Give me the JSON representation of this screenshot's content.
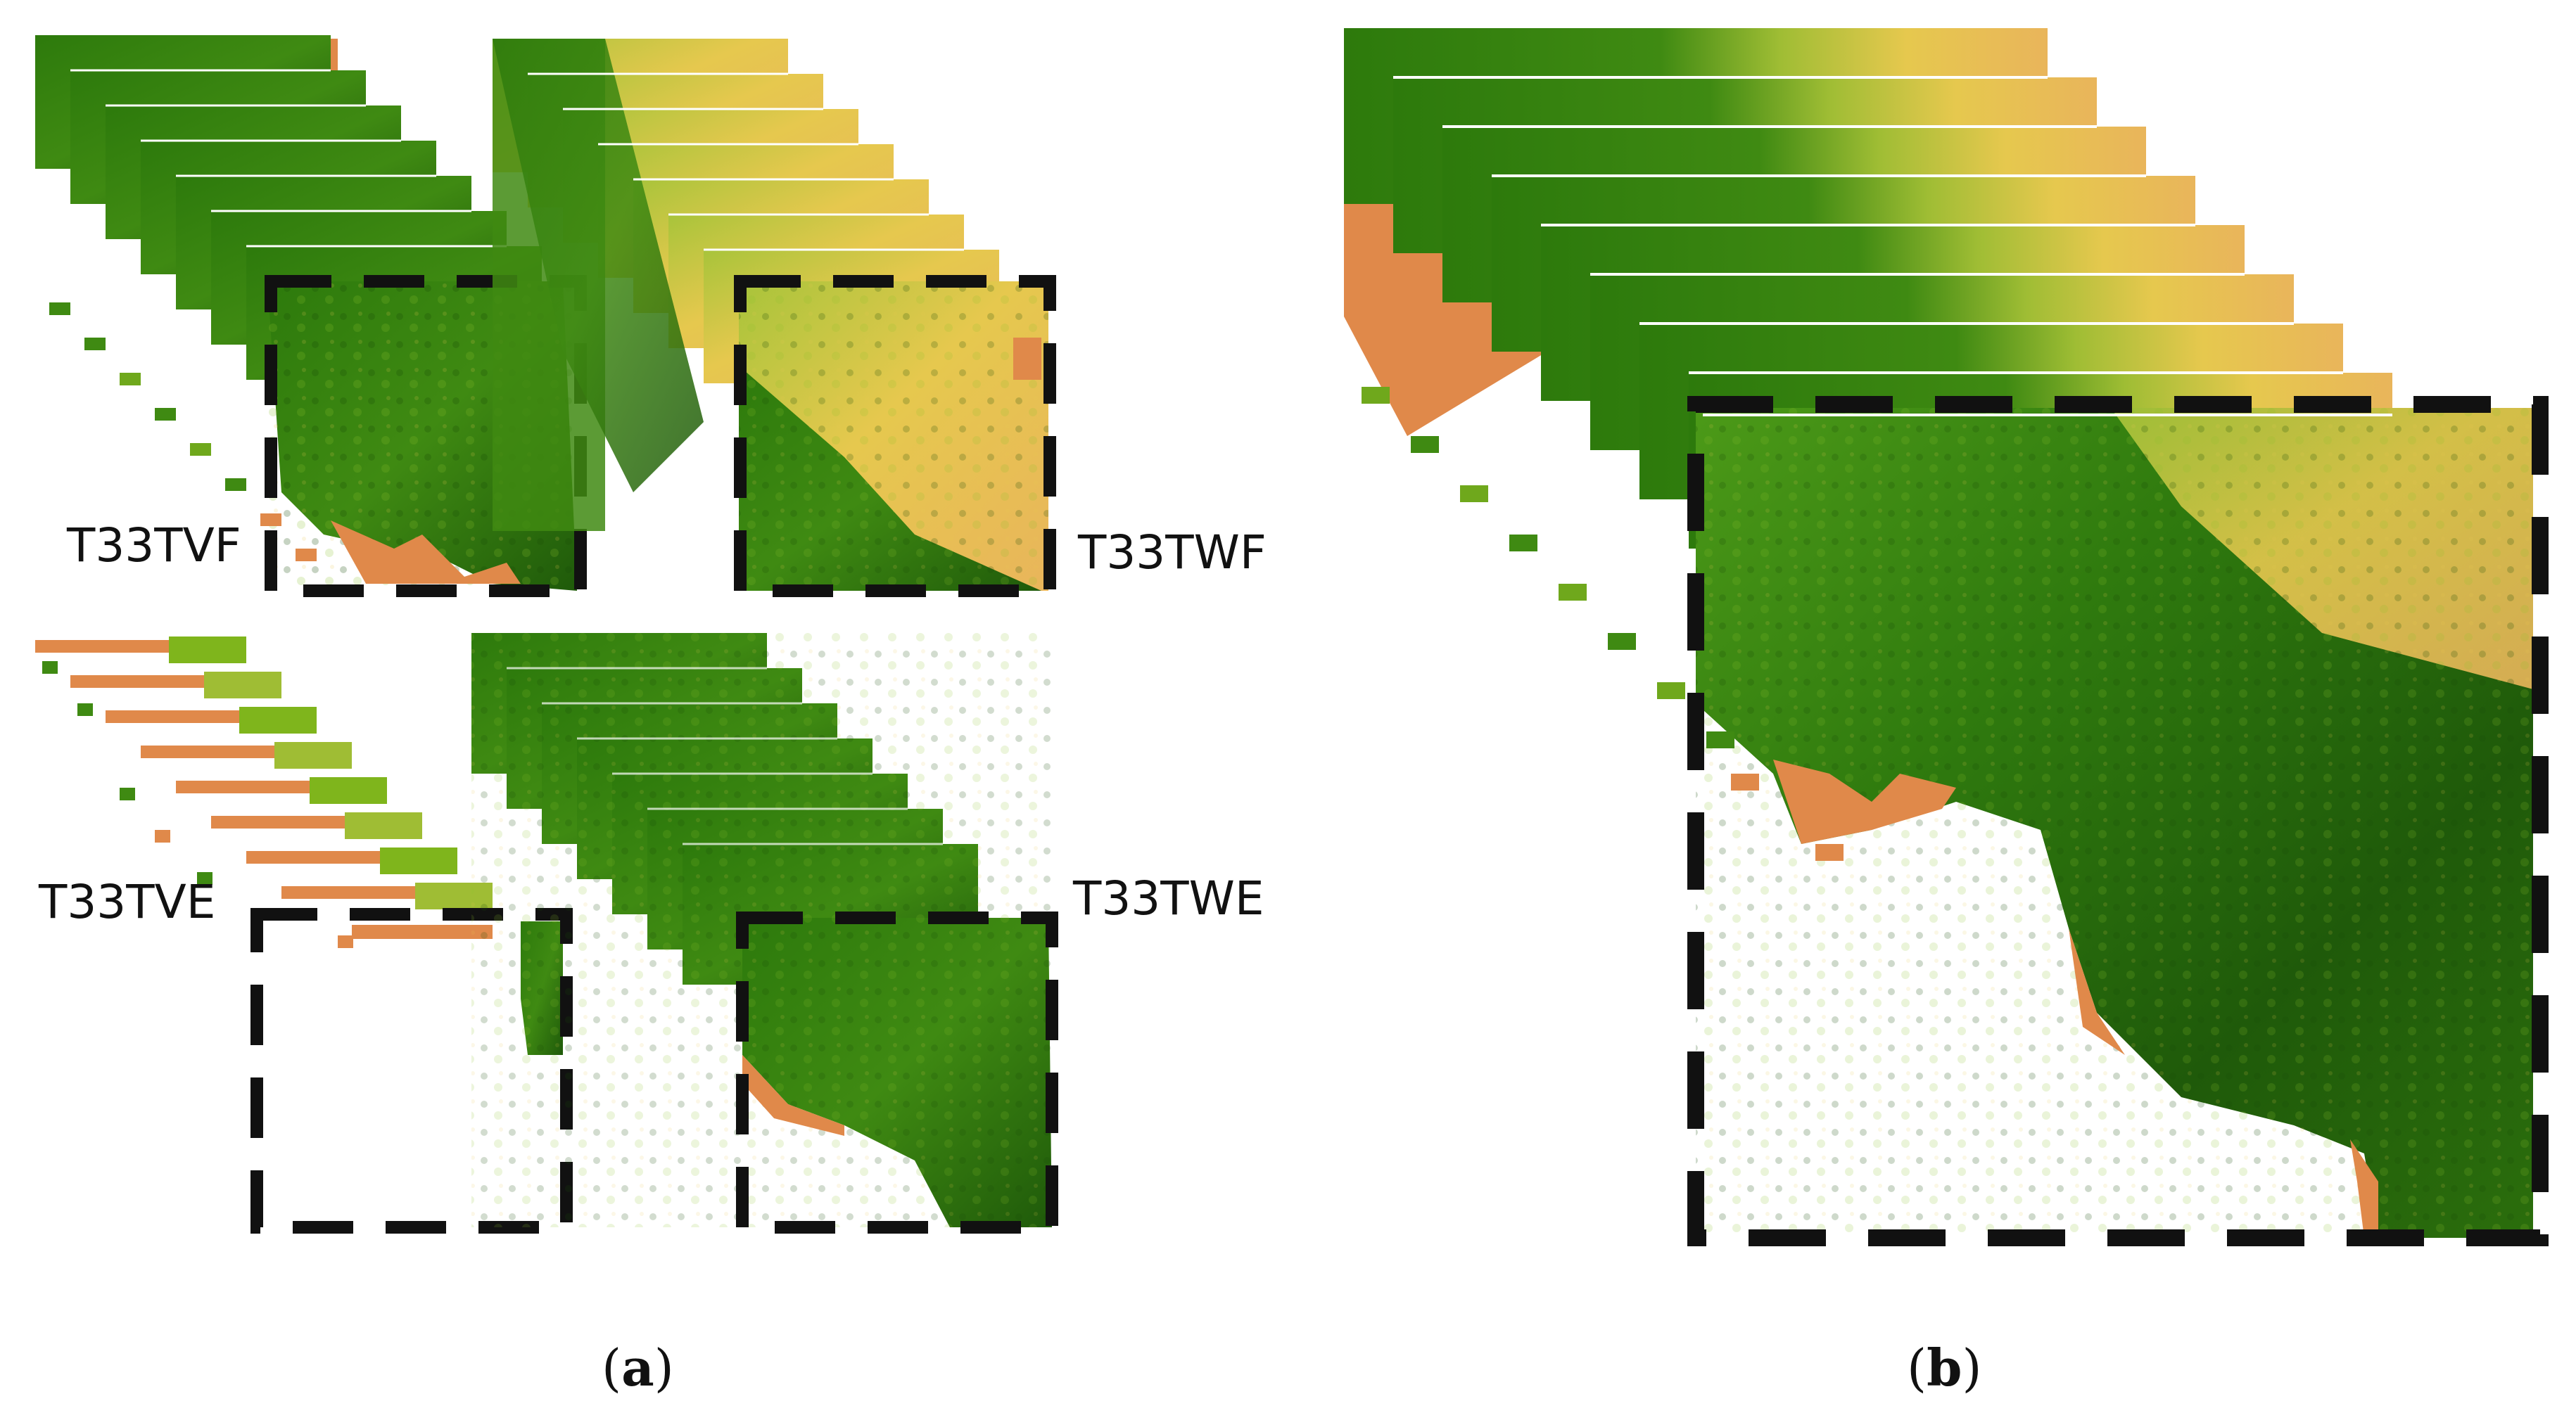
{
  "panel_a": {
    "caption": {
      "open": "(",
      "letter": "a",
      "close": ")"
    },
    "tiles": [
      {
        "id": "tvf",
        "label": "T33TVF"
      },
      {
        "id": "twf",
        "label": "T33TWF"
      },
      {
        "id": "tve",
        "label": "T33TVE"
      },
      {
        "id": "twe",
        "label": "T33TWE"
      }
    ]
  },
  "panel_b": {
    "caption": {
      "open": "(",
      "letter": "b",
      "close": ")"
    }
  },
  "colors": {
    "dark_green": "#1f5a0a",
    "mid_green": "#3f8a12",
    "light_green": "#7fb51c",
    "yellow": "#e6c84e",
    "tan": "#e9b55b",
    "orange": "#e0894a",
    "dash": "#111111"
  }
}
